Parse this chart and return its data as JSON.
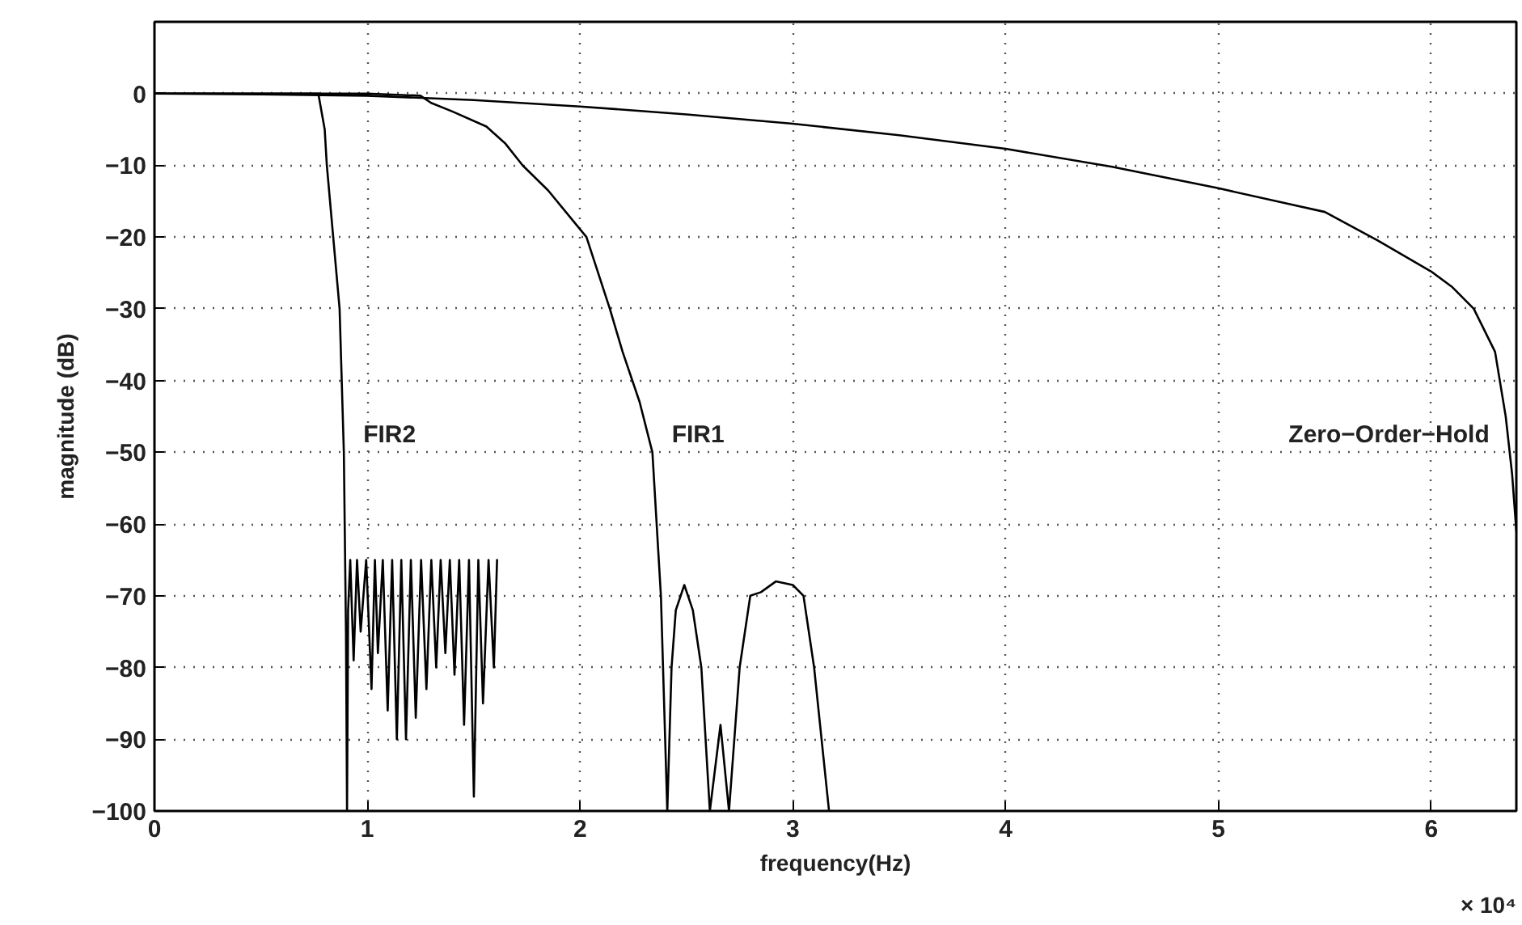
{
  "chart_data": {
    "type": "line",
    "xlabel": "frequency(Hz)",
    "ylabel": "magnitude (dB)",
    "xlim": [
      0,
      6.4
    ],
    "ylim": [
      -100,
      10
    ],
    "xticks": [
      0,
      1,
      2,
      3,
      4,
      5,
      6
    ],
    "yticks": [
      -100,
      -90,
      -80,
      -70,
      -60,
      -50,
      -40,
      -30,
      -20,
      -10,
      0
    ],
    "grid": true,
    "line_style": "solid",
    "annotations": [
      "× 10⁴"
    ],
    "series": [
      {
        "name": "FIR2",
        "color": "#000000",
        "x": [
          0,
          0.5,
          0.77,
          0.8,
          0.81,
          0.84,
          0.87,
          0.89,
          0.9,
          0.905,
          0.91,
          0.92,
          0.936,
          0.952,
          0.969,
          0.995,
          1.02,
          1.036,
          1.05,
          1.073,
          1.096,
          1.117,
          1.139,
          1.16,
          1.182,
          1.205,
          1.228,
          1.253,
          1.278,
          1.301,
          1.324,
          1.345,
          1.367,
          1.388,
          1.41,
          1.432,
          1.455,
          1.478,
          1.501,
          1.522,
          1.544,
          1.57,
          1.595,
          1.61
        ],
        "values": [
          0,
          0,
          0,
          -5,
          -10,
          -20,
          -30,
          -50,
          -75,
          -100,
          -72,
          -65,
          -79,
          -65,
          -75,
          -65,
          -83,
          -65,
          -78,
          -65,
          -86,
          -65,
          -90,
          -65,
          -90,
          -65,
          -87,
          -65,
          -83,
          -65,
          -80,
          -65,
          -78,
          -65,
          -81,
          -65,
          -88,
          -65,
          -98,
          -65,
          -85,
          -65,
          -80,
          -65
        ]
      },
      {
        "name": "FIR1",
        "color": "#000000",
        "x": [
          0,
          1.0,
          1.25,
          1.3,
          1.4,
          1.56,
          1.65,
          1.73,
          1.85,
          2.03,
          2.14,
          2.2,
          2.28,
          2.34,
          2.38,
          2.41,
          2.43,
          2.45,
          2.49,
          2.53,
          2.57,
          2.61,
          2.66,
          2.7,
          2.75,
          2.8,
          2.85,
          2.92,
          3.0,
          3.05,
          3.1,
          3.17
        ],
        "values": [
          0,
          0,
          -0.3,
          -1.3,
          -2.5,
          -4.6,
          -7,
          -10,
          -13.5,
          -20,
          -30,
          -36,
          -43,
          -50,
          -70,
          -100,
          -80,
          -72,
          -68.5,
          -72,
          -80,
          -100,
          -88,
          -100,
          -80,
          -70,
          -69.5,
          -68,
          -68.5,
          -70,
          -80,
          -100
        ]
      },
      {
        "name": "Zero−Order−Hold",
        "color": "#000000",
        "x": [
          0,
          0.5,
          1,
          1.5,
          2,
          2.5,
          3,
          3.5,
          4,
          4.5,
          5,
          5.5,
          5.75,
          6,
          6.1,
          6.2,
          6.3,
          6.35,
          6.38,
          6.4
        ],
        "values": [
          0,
          -0.1,
          -0.3,
          -0.9,
          -1.8,
          -2.9,
          -4.2,
          -5.8,
          -7.7,
          -10.2,
          -13.2,
          -16.5,
          -20.5,
          -24.8,
          -27,
          -30,
          -36,
          -45,
          -53,
          -61
        ]
      }
    ]
  }
}
